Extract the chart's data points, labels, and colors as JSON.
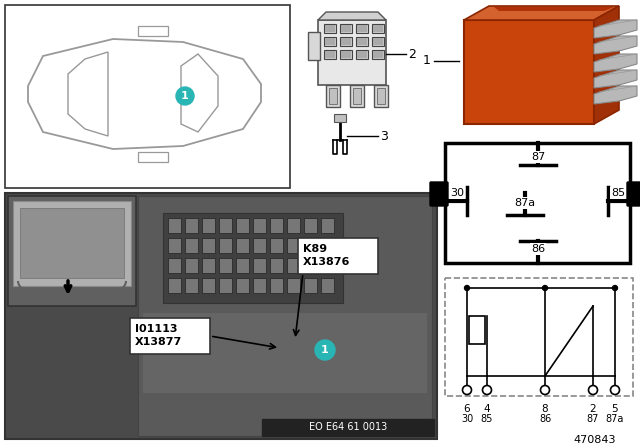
{
  "bg_color": "#ffffff",
  "teal_color": "#2ab5b5",
  "relay_orange_main": "#c8440a",
  "relay_orange_light": "#d4622e",
  "relay_orange_top": "#b83c08",
  "pin_metal": "#a0a0a0",
  "pin_dark": "#707070",
  "car_line_color": "#888888",
  "photo_bg_dark": "#5a5a5a",
  "photo_bg_mid": "#707070",
  "inset_bg": "#888888",
  "inset_inner": "#b0b0b0",
  "label_box_bg": "#ffffff",
  "eo_bg": "#222222",
  "eo_text": "#ffffff",
  "part_number": "470843",
  "eo_label": "EO E64 61 0013",
  "callout_k89_line1": "K89",
  "callout_k89_line2": "X13876",
  "callout_io_line1": "I01113",
  "callout_io_line2": "X13877"
}
